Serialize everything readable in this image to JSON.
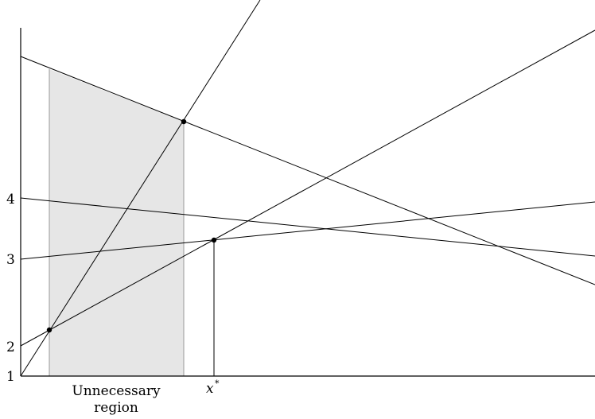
{
  "y_labels": {
    "one": "1",
    "two": "2",
    "three": "3",
    "four": "4"
  },
  "x_star": {
    "base": "x",
    "superscript": "*"
  },
  "region_label": {
    "line1": "Unnecessary",
    "line2": "region"
  },
  "colors": {
    "shade": "#e6e6e6",
    "shade_border": "#999999",
    "ink": "#000000"
  }
}
